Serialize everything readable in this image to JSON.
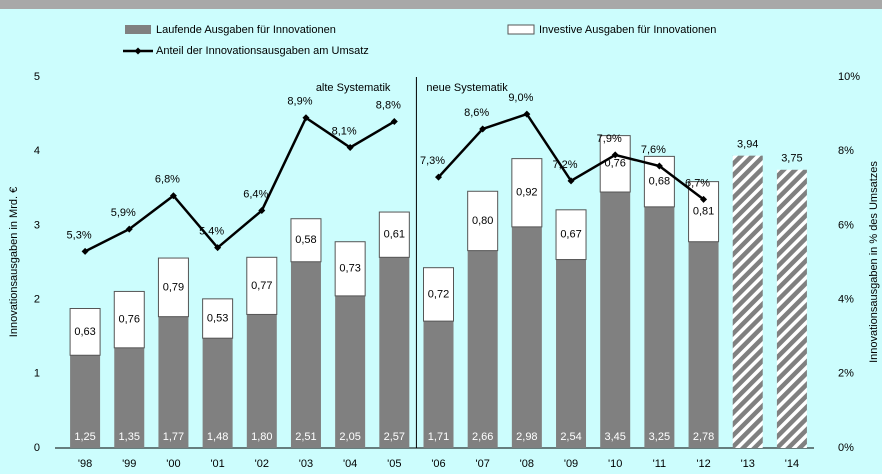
{
  "chart_data": {
    "type": "bar",
    "categories": [
      "'98",
      "'99",
      "'00",
      "'01",
      "'02",
      "'03",
      "'04",
      "'05",
      "'06",
      "'07",
      "'08",
      "'09",
      "'10",
      "'11",
      "'12",
      "'13",
      "'14"
    ],
    "series": [
      {
        "name": "Laufende Ausgaben für Innovationen",
        "type": "bar",
        "color": "#808080",
        "values": [
          1.25,
          1.35,
          1.77,
          1.48,
          1.8,
          2.51,
          2.05,
          2.57,
          1.71,
          2.66,
          2.98,
          2.54,
          3.45,
          3.25,
          2.78,
          null,
          null
        ],
        "value_labels": [
          "1,25",
          "1,35",
          "1,77",
          "1,48",
          "1,80",
          "2,51",
          "2,05",
          "2,57",
          "1,71",
          "2,66",
          "2,98",
          "2,54",
          "3,45",
          "3,25",
          "2,78",
          null,
          null
        ]
      },
      {
        "name": "Investive Ausgaben für Innovationen",
        "type": "bar",
        "color": "#ffffff",
        "values": [
          0.63,
          0.76,
          0.79,
          0.53,
          0.77,
          0.58,
          0.73,
          0.61,
          0.72,
          0.8,
          0.92,
          0.67,
          0.76,
          0.68,
          0.81,
          null,
          null
        ],
        "value_labels": [
          "0,63",
          "0,76",
          "0,79",
          "0,53",
          "0,77",
          "0,58",
          "0,73",
          "0,61",
          "0,72",
          "0,80",
          "0,92",
          "0,67",
          "0,76",
          "0,68",
          "0,81",
          null,
          null
        ]
      },
      {
        "type": "hatched-bar",
        "color": "#808080",
        "values": [
          null,
          null,
          null,
          null,
          null,
          null,
          null,
          null,
          null,
          null,
          null,
          null,
          null,
          null,
          null,
          3.94,
          3.75
        ],
        "value_labels": [
          null,
          null,
          null,
          null,
          null,
          null,
          null,
          null,
          null,
          null,
          null,
          null,
          null,
          null,
          null,
          "3,94",
          "3,75"
        ]
      },
      {
        "name": "Anteil der Innovationsausgaben am Umsatz",
        "type": "line",
        "axis": "y2",
        "color": "#000000",
        "values": [
          5.3,
          5.9,
          6.8,
          5.4,
          6.4,
          8.9,
          8.1,
          8.8,
          7.3,
          8.6,
          9.0,
          7.2,
          7.9,
          7.6,
          6.7,
          null,
          null
        ],
        "value_labels": [
          "5,3%",
          "5,9%",
          "6,8%",
          "5,4%",
          "6,4%",
          "8,9%",
          "8,1%",
          "8,8%",
          "7,3%",
          "8,6%",
          "9,0%",
          "7,2%",
          "7,9%",
          "7,6%",
          "6,7%",
          null,
          null
        ]
      }
    ],
    "annotations": [
      "alte Systematik",
      "neue Systematik"
    ],
    "ylabel": "Innovationsausgaben in Mrd. €",
    "y2label": "Innovationsausgaben in % des Umsatzes",
    "ylim": [
      0,
      5
    ],
    "yticks": [
      0,
      1,
      2,
      3,
      4,
      5
    ],
    "y2lim": [
      0,
      10
    ],
    "y2ticks": [
      {
        "value": 0,
        "label": "0%"
      },
      {
        "value": 2,
        "label": "2%"
      },
      {
        "value": 4,
        "label": "4%"
      },
      {
        "value": 6,
        "label": "6%"
      },
      {
        "value": 8,
        "label": "8%"
      },
      {
        "value": 10,
        "label": "10%"
      }
    ]
  }
}
